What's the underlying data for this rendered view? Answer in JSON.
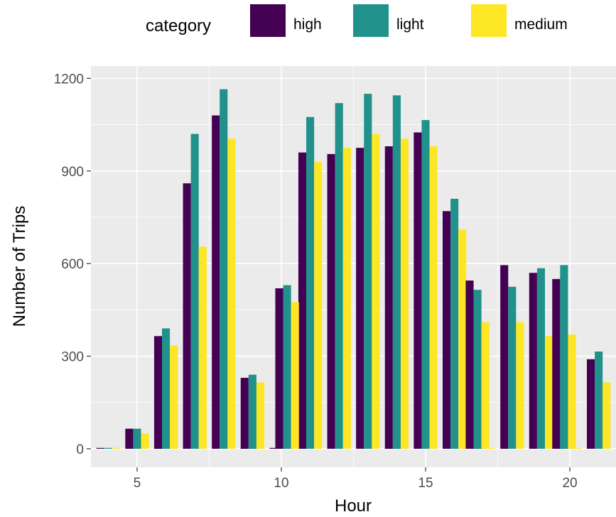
{
  "chart_data": {
    "type": "bar",
    "title": "",
    "xlabel": "Hour",
    "ylabel": "Number of Trips",
    "xlim": [
      3.4,
      21.6
    ],
    "ylim": [
      -60,
      1240
    ],
    "xticks": [
      5,
      10,
      15,
      20
    ],
    "yticks": [
      0,
      300,
      600,
      900,
      1200
    ],
    "grid": true,
    "legend": {
      "title": "category",
      "position": "top"
    },
    "x": [
      4,
      5,
      6,
      7,
      8,
      9,
      10,
      11,
      12,
      13,
      14,
      15,
      16,
      17,
      18,
      19,
      20,
      21
    ],
    "series": [
      {
        "name": "high",
        "color": "#440154",
        "values": [
          0,
          65,
          0,
          860,
          1080,
          0,
          0,
          960,
          955,
          975,
          0,
          1025,
          770,
          0,
          595,
          570,
          0,
          290
        ]
      },
      {
        "name": "light",
        "color": "#21918c",
        "values": [
          0,
          65,
          0,
          1020,
          1165,
          0,
          0,
          1075,
          1120,
          1150,
          0,
          1065,
          810,
          0,
          525,
          585,
          0,
          315
        ]
      },
      {
        "name": "medium",
        "color": "#fde725",
        "values": [
          0,
          50,
          0,
          655,
          1005,
          0,
          0,
          930,
          975,
          1020,
          0,
          980,
          710,
          0,
          410,
          365,
          0,
          215
        ]
      }
    ],
    "extra_groups": [
      {
        "center": 6.0,
        "values": [
          365,
          390,
          335
        ]
      },
      {
        "center": 9.0,
        "values": [
          230,
          240,
          215
        ]
      },
      {
        "center": 10.2,
        "values": [
          520,
          530,
          475
        ]
      },
      {
        "center": 14.0,
        "values": [
          980,
          1145,
          1005
        ]
      },
      {
        "center": 16.8,
        "values": [
          545,
          515,
          410
        ]
      },
      {
        "center": 19.8,
        "values": [
          550,
          595,
          370
        ]
      }
    ]
  }
}
